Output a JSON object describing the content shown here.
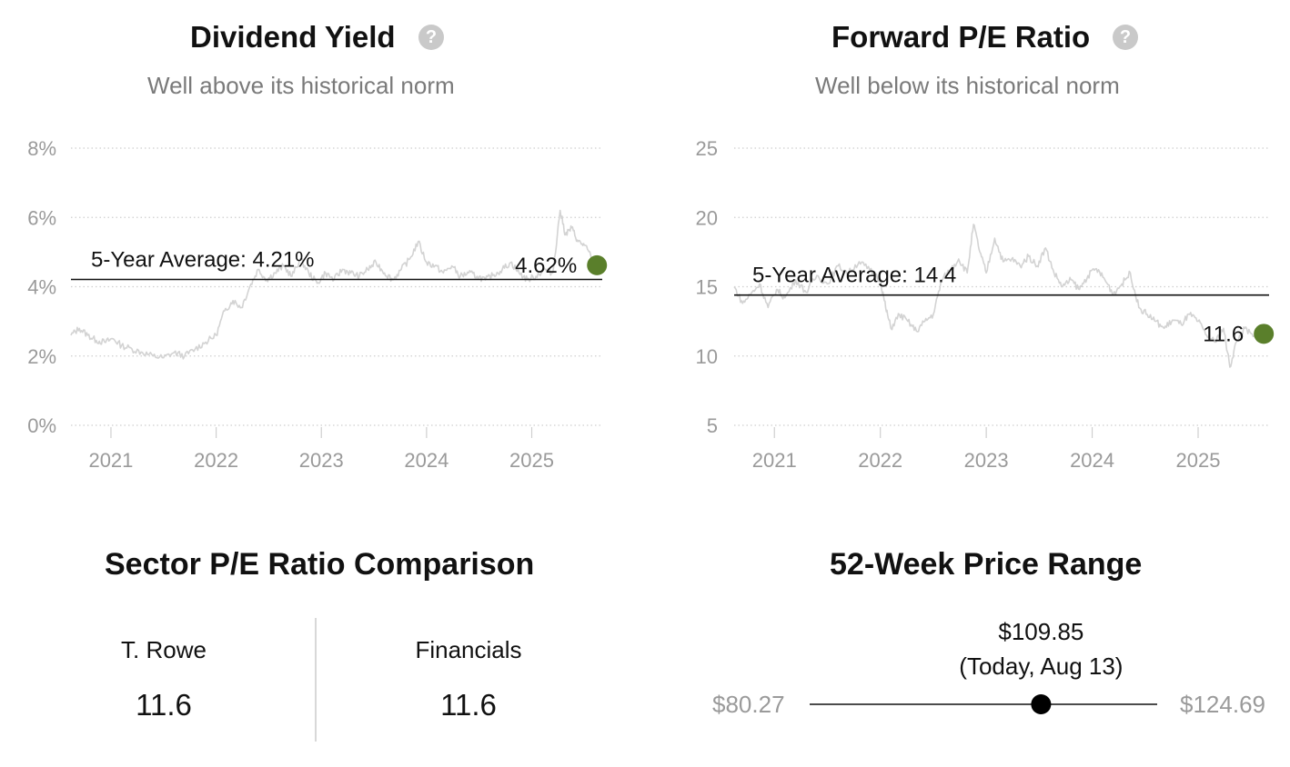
{
  "charts": {
    "dividend": {
      "title": "Dividend Yield",
      "subtitle": "Well above its historical norm",
      "help_icon": "question-circle-icon",
      "avg_label": "5-Year Average: 4.21%",
      "current_label": "4.62%"
    },
    "pe": {
      "title": "Forward P/E Ratio",
      "subtitle": "Well below its historical norm",
      "help_icon": "question-circle-icon",
      "avg_label": "5-Year Average: 14.4",
      "current_label": "11.6"
    }
  },
  "chart_data": [
    {
      "type": "line",
      "title": "Dividend Yield",
      "ylim": [
        0,
        8
      ],
      "yticks": [
        0,
        2,
        4,
        6,
        8
      ],
      "ytick_labels": [
        "0%",
        "2%",
        "4%",
        "6%",
        "8%"
      ],
      "xlim": [
        2020.62,
        2025.67
      ],
      "xticks": [
        2021,
        2022,
        2023,
        2024,
        2025
      ],
      "xtick_labels": [
        "2021",
        "2022",
        "2023",
        "2024",
        "2025"
      ],
      "grid": true,
      "average": 4.21,
      "current": {
        "x": 2025.62,
        "y": 4.62
      },
      "series_color": "#d3d3d3",
      "accent_color": "#5a7f2b",
      "series": [
        {
          "x": [
            2020.62,
            2020.7,
            2020.78,
            2020.86,
            2020.94,
            2021.02,
            2021.1,
            2021.2,
            2021.3,
            2021.4,
            2021.5,
            2021.6,
            2021.7,
            2021.8,
            2021.9,
            2022.0,
            2022.08,
            2022.16,
            2022.24,
            2022.32,
            2022.4,
            2022.48,
            2022.56,
            2022.64,
            2022.72,
            2022.8,
            2022.88,
            2022.96,
            2023.04,
            2023.12,
            2023.2,
            2023.28,
            2023.36,
            2023.44,
            2023.52,
            2023.6,
            2023.68,
            2023.76,
            2023.84,
            2023.92,
            2024.0,
            2024.08,
            2024.16,
            2024.24,
            2024.32,
            2024.4,
            2024.48,
            2024.56,
            2024.64,
            2024.72,
            2024.8,
            2024.88,
            2024.96,
            2025.04,
            2025.12,
            2025.2,
            2025.27,
            2025.32,
            2025.38,
            2025.44,
            2025.5,
            2025.56,
            2025.62
          ],
          "y": [
            2.6,
            2.8,
            2.6,
            2.45,
            2.4,
            2.5,
            2.3,
            2.2,
            2.1,
            2.0,
            1.95,
            2.1,
            2.0,
            2.2,
            2.4,
            2.6,
            3.3,
            3.6,
            3.4,
            4.0,
            4.5,
            4.2,
            4.4,
            4.6,
            4.3,
            4.8,
            4.4,
            4.1,
            4.4,
            4.2,
            4.5,
            4.4,
            4.3,
            4.5,
            4.7,
            4.4,
            4.2,
            4.5,
            4.8,
            5.3,
            4.7,
            4.6,
            4.4,
            4.6,
            4.3,
            4.4,
            4.3,
            4.2,
            4.35,
            4.5,
            4.7,
            4.4,
            4.2,
            4.3,
            4.5,
            4.4,
            6.2,
            5.5,
            5.7,
            5.3,
            5.2,
            4.9,
            4.62
          ]
        }
      ]
    },
    {
      "type": "line",
      "title": "Forward P/E Ratio",
      "ylim": [
        5,
        25
      ],
      "yticks": [
        5,
        10,
        15,
        20,
        25
      ],
      "ytick_labels": [
        "5",
        "10",
        "15",
        "20",
        "25"
      ],
      "xlim": [
        2020.62,
        2025.67
      ],
      "xticks": [
        2021,
        2022,
        2023,
        2024,
        2025
      ],
      "xtick_labels": [
        "2021",
        "2022",
        "2023",
        "2024",
        "2025"
      ],
      "grid": true,
      "average": 14.4,
      "current": {
        "x": 2025.62,
        "y": 11.6
      },
      "series_color": "#d3d3d3",
      "accent_color": "#5a7f2b",
      "series": [
        {
          "x": [
            2020.62,
            2020.7,
            2020.78,
            2020.86,
            2020.94,
            2021.02,
            2021.1,
            2021.2,
            2021.3,
            2021.4,
            2021.5,
            2021.6,
            2021.7,
            2021.8,
            2021.9,
            2022.0,
            2022.05,
            2022.1,
            2022.18,
            2022.26,
            2022.34,
            2022.42,
            2022.5,
            2022.58,
            2022.66,
            2022.74,
            2022.82,
            2022.88,
            2022.94,
            2023.0,
            2023.08,
            2023.16,
            2023.24,
            2023.32,
            2023.4,
            2023.48,
            2023.56,
            2023.64,
            2023.72,
            2023.8,
            2023.88,
            2023.96,
            2024.04,
            2024.12,
            2024.2,
            2024.28,
            2024.36,
            2024.44,
            2024.52,
            2024.6,
            2024.68,
            2024.76,
            2024.84,
            2024.92,
            2025.0,
            2025.08,
            2025.16,
            2025.24,
            2025.3,
            2025.36,
            2025.44,
            2025.52,
            2025.62
          ],
          "y": [
            15.0,
            13.8,
            14.5,
            15.2,
            13.5,
            14.8,
            14.2,
            15.5,
            14.6,
            15.8,
            15.2,
            16.5,
            16.0,
            16.8,
            16.2,
            15.5,
            13.5,
            12.0,
            13.0,
            12.5,
            11.8,
            12.5,
            13.0,
            15.5,
            16.2,
            17.0,
            16.0,
            19.5,
            17.5,
            16.0,
            18.5,
            16.8,
            17.0,
            16.5,
            17.2,
            16.5,
            17.8,
            16.0,
            15.0,
            15.5,
            14.8,
            15.8,
            16.3,
            15.5,
            14.5,
            15.2,
            16.0,
            13.5,
            13.0,
            12.5,
            12.0,
            12.6,
            12.3,
            13.0,
            12.5,
            11.5,
            11.0,
            12.0,
            9.2,
            11.0,
            12.0,
            11.4,
            11.6
          ]
        }
      ]
    }
  ],
  "sector": {
    "title": "Sector P/E Ratio Comparison",
    "left_label": "T. Rowe",
    "left_value": "11.6",
    "right_label": "Financials",
    "right_value": "11.6"
  },
  "range": {
    "title": "52-Week Price Range",
    "low": "$80.27",
    "high": "$124.69",
    "low_value": 80.27,
    "high_value": 124.69,
    "current_value": 109.85,
    "current_price": "$109.85",
    "current_note": "(Today, Aug 13)"
  }
}
